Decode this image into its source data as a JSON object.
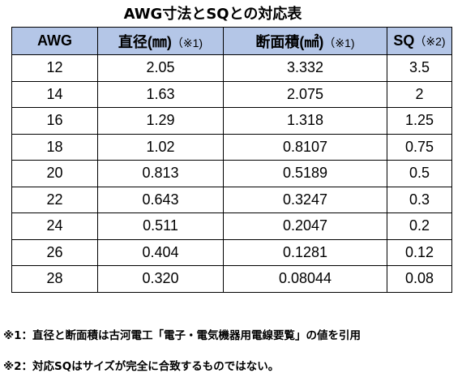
{
  "title": "AWG寸法とSQとの対応表",
  "table": {
    "headers": [
      {
        "label": "AWG",
        "note": ""
      },
      {
        "label": "直径(㎜)",
        "note": "（※1)"
      },
      {
        "label": "断面積(㎟)",
        "note": "（※1)"
      },
      {
        "label": "SQ",
        "note": "（※2)"
      }
    ],
    "rows": [
      [
        "12",
        "2.05",
        "3.332",
        "3.5"
      ],
      [
        "14",
        "1.63",
        "2.075",
        "2"
      ],
      [
        "16",
        "1.29",
        "1.318",
        "1.25"
      ],
      [
        "18",
        "1.02",
        "0.8107",
        "0.75"
      ],
      [
        "20",
        "0.813",
        "0.5189",
        "0.5"
      ],
      [
        "22",
        "0.643",
        "0.3247",
        "0.3"
      ],
      [
        "24",
        "0.511",
        "0.2047",
        "0.2"
      ],
      [
        "26",
        "0.404",
        "0.1281",
        "0.12"
      ],
      [
        "28",
        "0.320",
        "0.08044",
        "0.08"
      ]
    ],
    "header_bg": "#b4c6e7",
    "border_color": "#000000"
  },
  "footnotes": {
    "note1": "※1：直径と断面積は古河電工「電子・電気機器用電線要覧」の値を引用",
    "note2": "※2：対応SQはサイズが完全に合致するものではない。"
  }
}
